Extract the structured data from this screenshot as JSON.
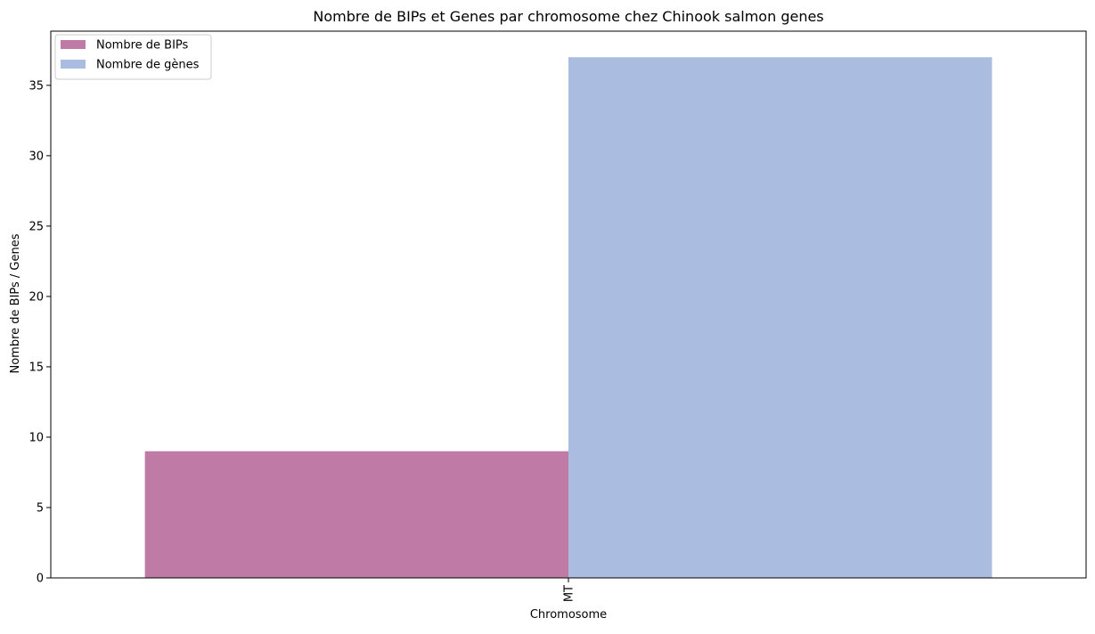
{
  "chart_data": {
    "type": "bar",
    "title": "Nombre de BIPs et Genes par chromosome chez Chinook salmon genes",
    "xlabel": "Chromosome",
    "ylabel": "Nombre de BIPs / Genes",
    "categories": [
      "MT"
    ],
    "series": [
      {
        "name": "Nombre de BIPs",
        "values": [
          9
        ],
        "color": "#bf7ba6"
      },
      {
        "name": "Nombre de gènes",
        "values": [
          37
        ],
        "color": "#aabce0"
      }
    ],
    "ylim": [
      0,
      38.85
    ],
    "yticks": [
      0,
      5,
      10,
      15,
      20,
      25,
      30,
      35
    ],
    "grid": false,
    "legend_position": "top-left",
    "xtick_rotation": "vertical"
  }
}
